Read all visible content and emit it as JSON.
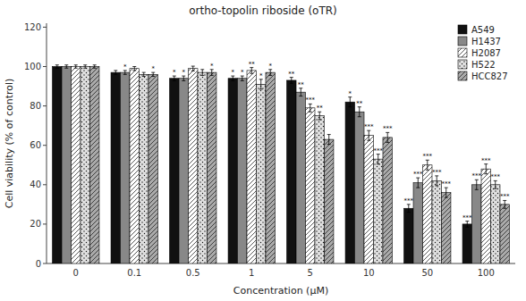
{
  "chart_data": {
    "type": "bar",
    "title": "ortho-topolin riboside (oTR)",
    "xlabel": "Concentration (μM)",
    "ylabel": "Cell viability (% of control)",
    "categories": [
      "0",
      "0.1",
      "0.5",
      "1",
      "5",
      "10",
      "50",
      "100"
    ],
    "series": [
      {
        "name": "A549",
        "color": "#111111",
        "values": [
          100,
          97,
          94,
          94,
          93,
          82,
          28,
          20
        ],
        "errors": [
          0.8,
          1.0,
          1.2,
          1.2,
          1.5,
          2.5,
          2.0,
          1.5
        ],
        "annotations": [
          null,
          null,
          "*",
          "*",
          "**",
          "*",
          "***",
          "***"
        ]
      },
      {
        "name": "H1437",
        "color": "#888888",
        "values": [
          100,
          97,
          94,
          94,
          87,
          77,
          41,
          40
        ],
        "errors": [
          0.8,
          1.0,
          1.2,
          1.2,
          2.0,
          2.5,
          2.5,
          2.5
        ],
        "annotations": [
          null,
          "*",
          "*",
          "*",
          "**",
          "**",
          "***",
          "***"
        ]
      },
      {
        "name": "H2087",
        "color": "#ffffff",
        "values": [
          100,
          99,
          99,
          98,
          79,
          65,
          50,
          48
        ],
        "errors": [
          0.8,
          1.0,
          1.2,
          1.5,
          2.0,
          2.5,
          2.5,
          2.5
        ],
        "annotations": [
          null,
          null,
          null,
          "**",
          "***",
          "***",
          "***",
          "***"
        ]
      },
      {
        "name": "H522",
        "color": "#e0e0e0",
        "values": [
          100,
          96,
          97,
          91,
          75,
          53,
          42,
          40
        ],
        "errors": [
          0.8,
          1.0,
          1.5,
          2.5,
          2.0,
          2.5,
          2.5,
          2.0
        ],
        "annotations": [
          null,
          null,
          null,
          "*",
          "**",
          "***",
          "***",
          "***"
        ]
      },
      {
        "name": "HCC827",
        "color": "#aaaaaa",
        "values": [
          100,
          96,
          97,
          97,
          63,
          64,
          36,
          30
        ],
        "errors": [
          0.8,
          1.0,
          1.5,
          1.5,
          2.5,
          2.5,
          2.5,
          2.0
        ],
        "annotations": [
          null,
          "*",
          "*",
          "*",
          null,
          "***",
          "***",
          "***"
        ]
      }
    ],
    "ylim": [
      0,
      122
    ],
    "yticks": [
      0,
      20,
      40,
      60,
      80,
      100,
      120
    ],
    "grid": false,
    "legend": "upper right"
  }
}
